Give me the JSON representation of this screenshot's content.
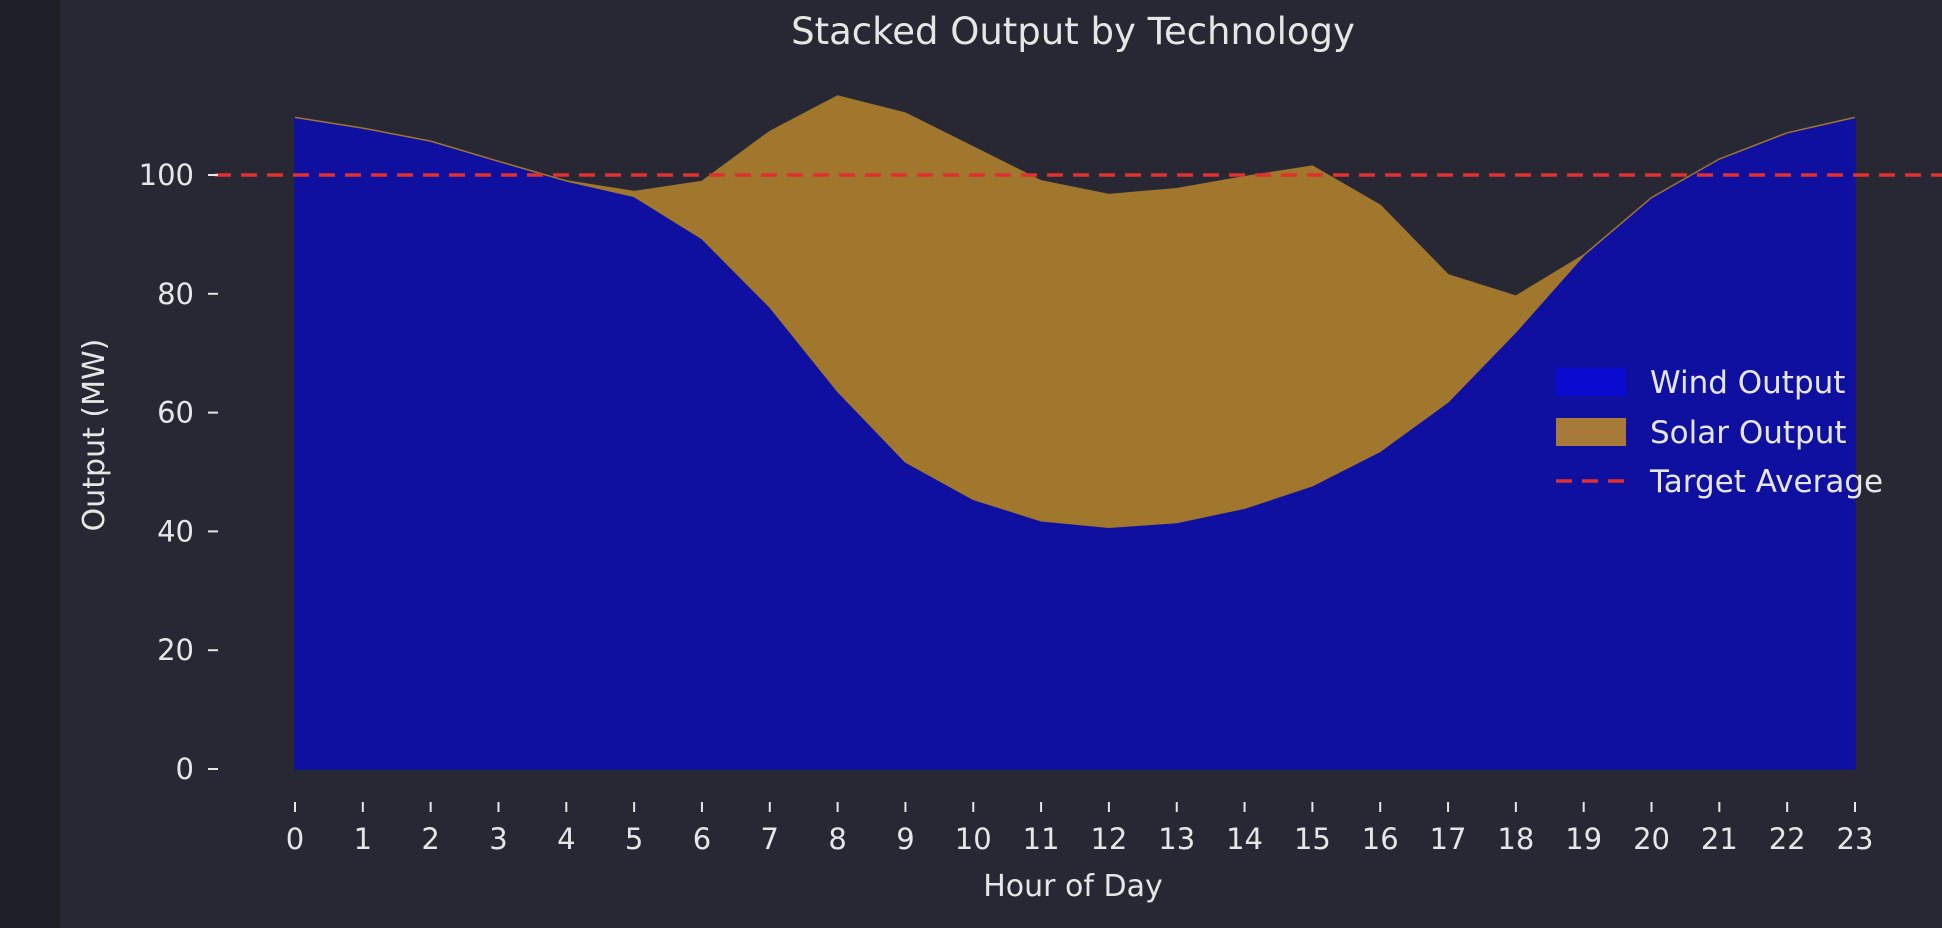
{
  "chart_data": {
    "type": "area",
    "stacked": true,
    "title": "Stacked Output by Technology",
    "xlabel": "Hour of Day",
    "ylabel": "Output (MW)",
    "x": [
      0,
      1,
      2,
      3,
      4,
      5,
      6,
      7,
      8,
      9,
      10,
      11,
      12,
      13,
      14,
      15,
      16,
      17,
      18,
      19,
      20,
      21,
      22,
      23
    ],
    "xticks": [
      "0",
      "1",
      "2",
      "3",
      "4",
      "5",
      "6",
      "7",
      "8",
      "9",
      "10",
      "11",
      "12",
      "13",
      "14",
      "15",
      "16",
      "17",
      "18",
      "19",
      "20",
      "21",
      "22",
      "23"
    ],
    "yticks": [
      "0",
      "20",
      "40",
      "60",
      "80",
      "100"
    ],
    "ylim": [
      0,
      110
    ],
    "grid": false,
    "legend_position": "right",
    "series": [
      {
        "name": "Wind Output",
        "color": "#1010a0",
        "legend_color": "#0a0ad0",
        "values": [
          109.7,
          107.9,
          105.7,
          102.3,
          99.0,
          96.4,
          89.3,
          77.8,
          63.6,
          51.7,
          45.4,
          41.8,
          40.7,
          41.5,
          43.9,
          47.7,
          53.5,
          61.8,
          73.6,
          86.5,
          96.2,
          102.7,
          107.1,
          109.7
        ]
      },
      {
        "name": "Solar Output",
        "color": "#a0772d",
        "legend_color": "#a87a3a",
        "values": [
          0,
          0,
          0,
          0,
          0,
          0.8,
          9.6,
          29.5,
          49.7,
          58.7,
          59.3,
          57.2,
          56.0,
          56.2,
          55.8,
          53.8,
          41.4,
          21.4,
          6.0,
          0,
          0,
          0,
          0,
          0
        ]
      }
    ],
    "reference_line": {
      "name": "Target Average",
      "y": 100,
      "color": "#e03030",
      "style": "dashed"
    }
  }
}
